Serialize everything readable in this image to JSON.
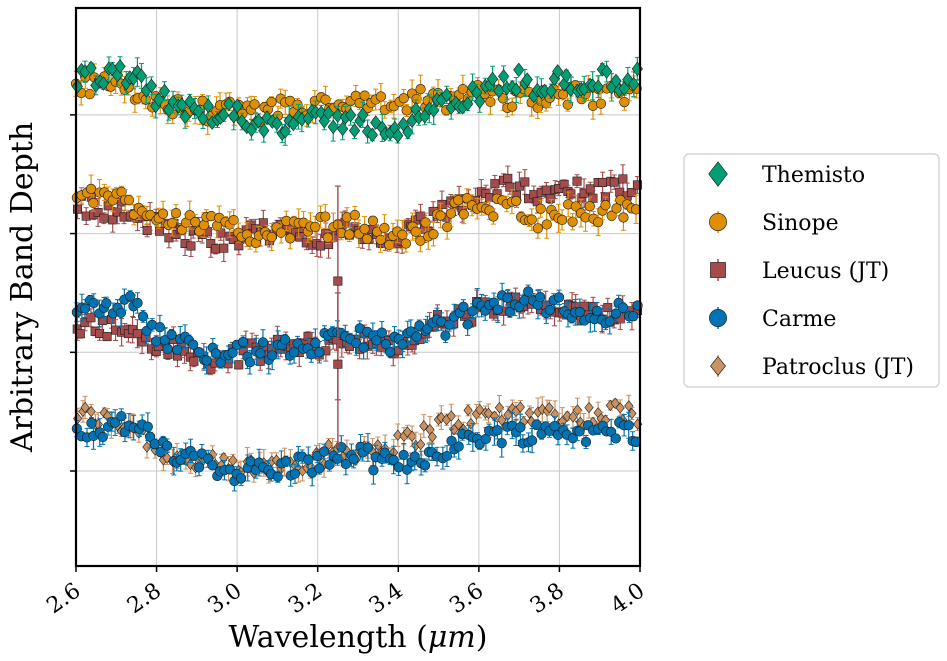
{
  "chart_data": {
    "type": "scatter",
    "title": "",
    "xlabel": "Wavelength (μm)",
    "xlabel_parts": [
      "Wavelength (",
      "μm",
      ")"
    ],
    "ylabel": "Arbitrary Band Depth",
    "xlim": [
      2.6,
      4.0
    ],
    "ylim": [
      -0.8,
      3.9
    ],
    "grid": true,
    "legend_position": "right",
    "xticks": [
      2.6,
      2.8,
      3.0,
      3.2,
      3.4,
      3.6,
      3.8,
      4.0
    ],
    "xtick_labels": [
      "2.6",
      "2.8",
      "3.0",
      "3.2",
      "3.4",
      "3.6",
      "3.8",
      "4.0"
    ],
    "yticks": [
      0,
      1,
      2,
      3
    ],
    "series": [
      {
        "name": "Themisto",
        "color": "#029e73",
        "marker": "diamond-large",
        "offset": 3,
        "points": [
          [
            2.6,
            0.28
          ],
          [
            2.65,
            0.32
          ],
          [
            2.7,
            0.33
          ],
          [
            2.75,
            0.3
          ],
          [
            2.8,
            0.15
          ],
          [
            2.85,
            0.06
          ],
          [
            2.9,
            0.03
          ],
          [
            2.95,
            0.02
          ],
          [
            3.0,
            0.0
          ],
          [
            3.05,
            -0.05
          ],
          [
            3.1,
            -0.08
          ],
          [
            3.15,
            -0.05
          ],
          [
            3.2,
            -0.06
          ],
          [
            3.25,
            -0.04
          ],
          [
            3.3,
            -0.06
          ],
          [
            3.35,
            -0.1
          ],
          [
            3.4,
            -0.12
          ],
          [
            3.45,
            -0.02
          ],
          [
            3.5,
            0.08
          ],
          [
            3.55,
            0.1
          ],
          [
            3.6,
            0.18
          ],
          [
            3.65,
            0.25
          ],
          [
            3.7,
            0.3
          ],
          [
            3.75,
            0.22
          ],
          [
            3.8,
            0.3
          ],
          [
            3.85,
            0.25
          ],
          [
            3.9,
            0.3
          ],
          [
            3.95,
            0.28
          ],
          [
            4.0,
            0.32
          ]
        ]
      },
      {
        "name": "Sinope",
        "color": "#de8f05",
        "marker": "circle",
        "offset": 3,
        "points": [
          [
            2.6,
            0.22
          ],
          [
            2.65,
            0.25
          ],
          [
            2.7,
            0.22
          ],
          [
            2.75,
            0.18
          ],
          [
            2.8,
            0.12
          ],
          [
            2.85,
            0.06
          ],
          [
            2.9,
            0.04
          ],
          [
            2.95,
            0.03
          ],
          [
            3.0,
            0.02
          ],
          [
            3.05,
            0.0
          ],
          [
            3.1,
            0.05
          ],
          [
            3.15,
            0.06
          ],
          [
            3.2,
            0.08
          ],
          [
            3.25,
            0.06
          ],
          [
            3.3,
            0.1
          ],
          [
            3.35,
            0.07
          ],
          [
            3.4,
            0.06
          ],
          [
            3.45,
            0.14
          ],
          [
            3.5,
            0.1
          ],
          [
            3.55,
            0.14
          ],
          [
            3.6,
            0.18
          ],
          [
            3.65,
            0.15
          ],
          [
            3.7,
            0.14
          ],
          [
            3.75,
            0.14
          ],
          [
            3.8,
            0.18
          ],
          [
            3.85,
            0.16
          ],
          [
            3.9,
            0.14
          ],
          [
            3.95,
            0.18
          ],
          [
            4.0,
            0.15
          ]
        ]
      },
      {
        "name": "Leucus (JT)",
        "color": "#a44b4b",
        "marker": "square",
        "offset": 2,
        "points": [
          [
            2.6,
            0.25
          ],
          [
            2.65,
            0.22
          ],
          [
            2.7,
            0.2
          ],
          [
            2.75,
            0.14
          ],
          [
            2.8,
            0.06
          ],
          [
            2.85,
            0.0
          ],
          [
            2.9,
            -0.05
          ],
          [
            2.95,
            -0.04
          ],
          [
            3.0,
            -0.02
          ],
          [
            3.05,
            0.0
          ],
          [
            3.1,
            0.02
          ],
          [
            3.15,
            0.0
          ],
          [
            3.2,
            -0.02
          ],
          [
            3.25,
            0.0
          ],
          [
            3.3,
            0.02
          ],
          [
            3.35,
            -0.02
          ],
          [
            3.4,
            -0.05
          ],
          [
            3.45,
            0.05
          ],
          [
            3.5,
            0.15
          ],
          [
            3.55,
            0.25
          ],
          [
            3.6,
            0.32
          ],
          [
            3.65,
            0.38
          ],
          [
            3.7,
            0.4
          ],
          [
            3.75,
            0.35
          ],
          [
            3.8,
            0.38
          ],
          [
            3.85,
            0.35
          ],
          [
            3.9,
            0.35
          ],
          [
            3.95,
            0.4
          ],
          [
            4.0,
            0.38
          ]
        ]
      },
      {
        "name": "Carme",
        "color": "#0173b2",
        "marker": "circle",
        "offset": 1,
        "points": [
          [
            2.6,
            0.42
          ],
          [
            2.65,
            0.4
          ],
          [
            2.7,
            0.42
          ],
          [
            2.75,
            0.38
          ],
          [
            2.8,
            0.15
          ],
          [
            2.85,
            0.08
          ],
          [
            2.9,
            0.03
          ],
          [
            2.95,
            0.0
          ],
          [
            3.0,
            0.0
          ],
          [
            3.05,
            0.0
          ],
          [
            3.1,
            0.02
          ],
          [
            3.15,
            0.04
          ],
          [
            3.2,
            0.06
          ],
          [
            3.25,
            0.1
          ],
          [
            3.3,
            0.14
          ],
          [
            3.35,
            0.1
          ],
          [
            3.4,
            0.08
          ],
          [
            3.45,
            0.15
          ],
          [
            3.5,
            0.2
          ],
          [
            3.55,
            0.28
          ],
          [
            3.6,
            0.35
          ],
          [
            3.65,
            0.4
          ],
          [
            3.7,
            0.45
          ],
          [
            3.75,
            0.42
          ],
          [
            3.8,
            0.38
          ],
          [
            3.85,
            0.35
          ],
          [
            3.9,
            0.3
          ],
          [
            3.95,
            0.35
          ],
          [
            4.0,
            0.32
          ]
        ]
      },
      {
        "name": "Patroclus (JT)",
        "color": "#ca9161",
        "marker": "diamond",
        "offset": 0,
        "points": [
          [
            2.6,
            0.48
          ],
          [
            2.65,
            0.45
          ],
          [
            2.7,
            0.4
          ],
          [
            2.75,
            0.38
          ],
          [
            2.8,
            0.18
          ],
          [
            2.85,
            0.12
          ],
          [
            2.9,
            0.08
          ],
          [
            2.95,
            0.04
          ],
          [
            3.0,
            0.02
          ],
          [
            3.05,
            0.03
          ],
          [
            3.1,
            0.06
          ],
          [
            3.15,
            0.08
          ],
          [
            3.2,
            0.12
          ],
          [
            3.25,
            0.15
          ],
          [
            3.3,
            0.18
          ],
          [
            3.35,
            0.2
          ],
          [
            3.4,
            0.22
          ],
          [
            3.45,
            0.3
          ],
          [
            3.5,
            0.38
          ],
          [
            3.55,
            0.42
          ],
          [
            3.6,
            0.46
          ],
          [
            3.65,
            0.48
          ],
          [
            3.7,
            0.5
          ],
          [
            3.75,
            0.48
          ],
          [
            3.8,
            0.48
          ],
          [
            3.85,
            0.46
          ],
          [
            3.9,
            0.48
          ],
          [
            3.95,
            0.5
          ],
          [
            4.0,
            0.48
          ]
        ]
      },
      {
        "name": "Carme",
        "color": "#0173b2",
        "marker": "circle",
        "offset": 0,
        "legend": false,
        "points": [
          [
            2.6,
            0.38
          ],
          [
            2.65,
            0.34
          ],
          [
            2.7,
            0.4
          ],
          [
            2.75,
            0.38
          ],
          [
            2.8,
            0.22
          ],
          [
            2.85,
            0.12
          ],
          [
            2.9,
            0.08
          ],
          [
            2.95,
            0.02
          ],
          [
            3.0,
            0.0
          ],
          [
            3.05,
            0.02
          ],
          [
            3.1,
            0.0
          ],
          [
            3.15,
            0.05
          ],
          [
            3.2,
            0.08
          ],
          [
            3.25,
            0.12
          ],
          [
            3.3,
            0.14
          ],
          [
            3.35,
            0.08
          ],
          [
            3.4,
            0.05
          ],
          [
            3.45,
            0.1
          ],
          [
            3.5,
            0.18
          ],
          [
            3.55,
            0.22
          ],
          [
            3.6,
            0.3
          ],
          [
            3.65,
            0.32
          ],
          [
            3.7,
            0.32
          ],
          [
            3.75,
            0.33
          ],
          [
            3.8,
            0.35
          ],
          [
            3.85,
            0.33
          ],
          [
            3.9,
            0.3
          ],
          [
            3.95,
            0.35
          ],
          [
            4.0,
            0.33
          ]
        ]
      },
      {
        "name": "Leucus (JT)",
        "color": "#a44b4b",
        "marker": "square",
        "offset": 1,
        "legend": false,
        "points": [
          [
            2.6,
            0.25
          ],
          [
            2.65,
            0.22
          ],
          [
            2.7,
            0.2
          ],
          [
            2.75,
            0.15
          ],
          [
            2.8,
            0.06
          ],
          [
            2.85,
            0.02
          ],
          [
            2.9,
            -0.05
          ],
          [
            2.95,
            -0.1
          ],
          [
            3.0,
            -0.02
          ],
          [
            3.05,
            0.0
          ],
          [
            3.1,
            0.03
          ],
          [
            3.15,
            0.05
          ],
          [
            3.2,
            0.06
          ],
          [
            3.25,
            0.08
          ],
          [
            3.3,
            0.12
          ],
          [
            3.35,
            0.04
          ],
          [
            3.4,
            0.0
          ],
          [
            3.45,
            0.15
          ],
          [
            3.5,
            0.25
          ],
          [
            3.55,
            0.3
          ],
          [
            3.6,
            0.35
          ],
          [
            3.65,
            0.38
          ],
          [
            3.7,
            0.4
          ],
          [
            3.75,
            0.38
          ],
          [
            3.8,
            0.35
          ],
          [
            3.85,
            0.3
          ],
          [
            3.9,
            0.32
          ],
          [
            3.95,
            0.35
          ],
          [
            4.0,
            0.3
          ]
        ]
      },
      {
        "name": "Sinope",
        "color": "#de8f05",
        "marker": "circle",
        "offset": 2,
        "legend": false,
        "points": [
          [
            2.6,
            0.28
          ],
          [
            2.65,
            0.33
          ],
          [
            2.7,
            0.3
          ],
          [
            2.75,
            0.24
          ],
          [
            2.8,
            0.18
          ],
          [
            2.85,
            0.12
          ],
          [
            2.9,
            0.1
          ],
          [
            2.95,
            0.05
          ],
          [
            3.0,
            0.02
          ],
          [
            3.05,
            0.0
          ],
          [
            3.1,
            0.02
          ],
          [
            3.15,
            0.04
          ],
          [
            3.2,
            0.06
          ],
          [
            3.25,
            0.05
          ],
          [
            3.3,
            0.08
          ],
          [
            3.35,
            0.0
          ],
          [
            3.4,
            -0.05
          ],
          [
            3.45,
            0.0
          ],
          [
            3.5,
            0.1
          ],
          [
            3.55,
            0.2
          ],
          [
            3.6,
            0.25
          ],
          [
            3.65,
            0.22
          ],
          [
            3.7,
            0.22
          ],
          [
            3.75,
            0.12
          ],
          [
            3.8,
            0.2
          ],
          [
            3.85,
            0.15
          ],
          [
            3.9,
            0.18
          ],
          [
            3.95,
            0.2
          ],
          [
            4.0,
            0.1
          ]
        ]
      }
    ],
    "outlier": {
      "series": "Leucus (JT)",
      "x": 3.25,
      "y_center": 1.6,
      "y_low": 0.6,
      "y_high": 2.4,
      "y_center_2": 0.9,
      "y_low_2": 0.2,
      "y_high_2": 1.5
    }
  }
}
